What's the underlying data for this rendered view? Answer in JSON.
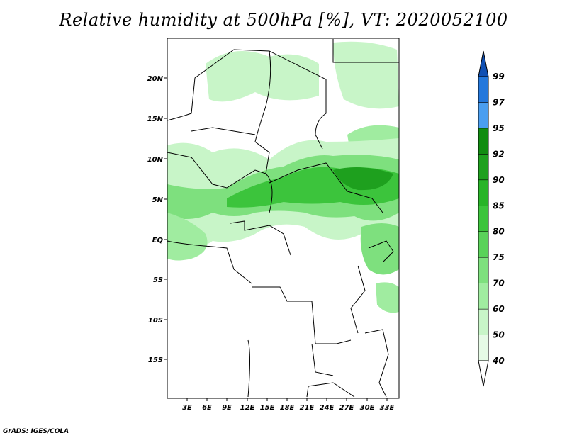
{
  "title": "Relative humidity at 500hPa [%], VT: 2020052100",
  "footer": "GrADS: IGES/COLA",
  "map": {
    "lat_labels": [
      "20N",
      "15N",
      "10N",
      "5N",
      "EQ",
      "5S",
      "10S",
      "15S"
    ],
    "lon_labels": [
      "3E",
      "6E",
      "9E",
      "12E",
      "15E",
      "18E",
      "21E",
      "24E",
      "27E",
      "30E",
      "33E"
    ]
  },
  "colorbar": {
    "levels": [
      "40",
      "50",
      "60",
      "70",
      "75",
      "80",
      "85",
      "90",
      "92",
      "95",
      "97",
      "99"
    ],
    "colors": [
      "#ffffff",
      "#e6fae6",
      "#c8f5c8",
      "#a0eca0",
      "#7ee07e",
      "#5ad25a",
      "#3cc43c",
      "#28b428",
      "#1ea01e",
      "#118c11",
      "#4a9ef0",
      "#2478dc",
      "#1050b4"
    ]
  },
  "humidity_areas": [
    {
      "name": "sahara-north",
      "color": "#c8f5c8"
    },
    {
      "name": "central-band",
      "color": "#5ad25a"
    },
    {
      "name": "core",
      "color": "#1ea01e"
    }
  ]
}
